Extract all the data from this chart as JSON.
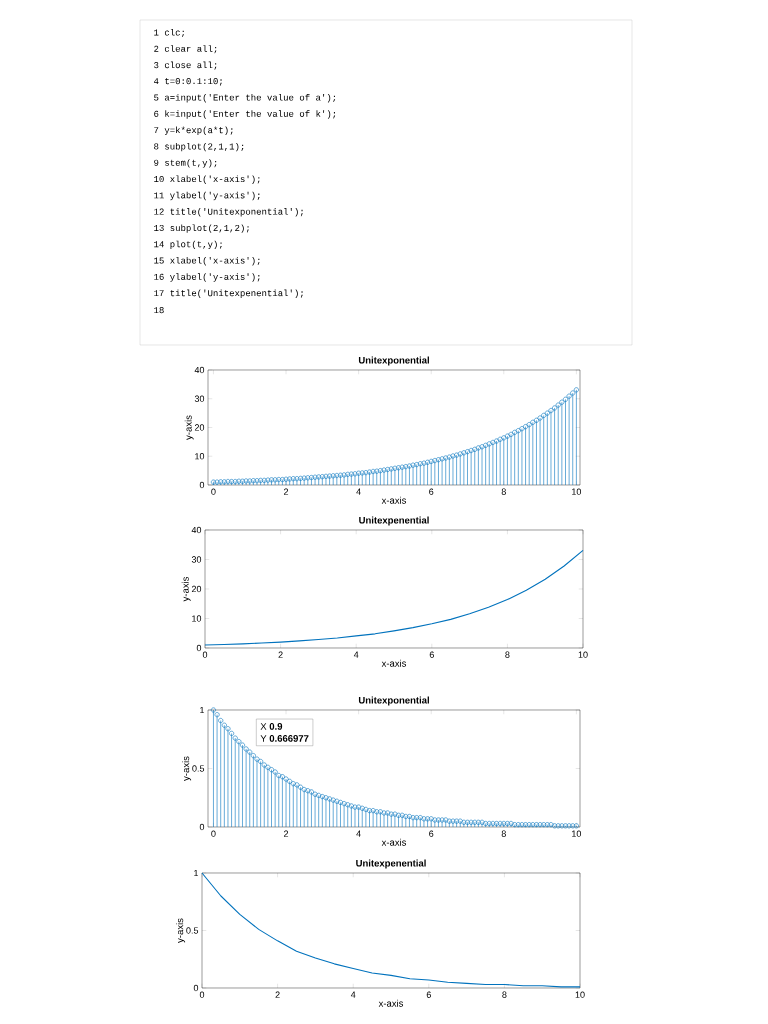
{
  "chart_data": [
    {
      "type": "other",
      "annotations": [
        "1 clc;",
        "2 clear all;",
        "3 close all;",
        "4 t=0:0.1:10;",
        "5 a=input('Enter the value of a');",
        "6 k=input('Enter the value of k');",
        "7 y=k*exp(a*t);",
        "8 subplot(2,1,1);",
        "9 stem(t,y);",
        "10 xlabel('x-axis');",
        "11 ylabel('y-axis');",
        "12 title('Unitexponential');",
        "13 subplot(2,1,2);",
        "14 plot(t,y);",
        "15 xlabel('x-axis');",
        "16 ylabel('y-axis');",
        "17 title('Unitexpenential');",
        "18"
      ]
    },
    {
      "type": "lollipop",
      "title": "Unitexponential",
      "xlabel": "x-axis",
      "ylabel": "y-axis",
      "color": "#0072bd",
      "marker": "circle",
      "xlim": [
        -0.15,
        10.1
      ],
      "ylim": [
        0,
        40
      ],
      "xticks": [
        0,
        2,
        4,
        6,
        8,
        10
      ],
      "yticks": [
        0,
        10,
        20,
        30,
        40
      ],
      "x": [
        0,
        0.1,
        0.2,
        0.3,
        0.4,
        0.5,
        0.6,
        0.7,
        0.8,
        0.9,
        1,
        1.1,
        1.2,
        1.3,
        1.4,
        1.5,
        1.6,
        1.7,
        1.8,
        1.9,
        2,
        2.1,
        2.2,
        2.3,
        2.4,
        2.5,
        2.6,
        2.7,
        2.8,
        2.9,
        3,
        3.1,
        3.2,
        3.3,
        3.4,
        3.5,
        3.6,
        3.7,
        3.8,
        3.9,
        4,
        4.1,
        4.2,
        4.3,
        4.4,
        4.5,
        4.6,
        4.7,
        4.8,
        4.9,
        5,
        5.1,
        5.2,
        5.3,
        5.4,
        5.5,
        5.6,
        5.7,
        5.8,
        5.9,
        6,
        6.1,
        6.2,
        6.3,
        6.4,
        6.5,
        6.6,
        6.7,
        6.8,
        6.9,
        7,
        7.1,
        7.2,
        7.3,
        7.4,
        7.5,
        7.6,
        7.7,
        7.8,
        7.9,
        8,
        8.1,
        8.2,
        8.3,
        8.4,
        8.5,
        8.6,
        8.7,
        8.8,
        8.9,
        9,
        9.1,
        9.2,
        9.3,
        9.4,
        9.5,
        9.6,
        9.7,
        9.8,
        9.9,
        10
      ],
      "values": [
        1.0,
        1.0,
        1.1,
        1.1,
        1.2,
        1.2,
        1.2,
        1.3,
        1.3,
        1.4,
        1.4,
        1.5,
        1.5,
        1.6,
        1.6,
        1.7,
        1.8,
        1.8,
        1.9,
        1.9,
        2.0,
        2.1,
        2.2,
        2.2,
        2.3,
        2.4,
        2.5,
        2.6,
        2.7,
        2.8,
        2.9,
        3.0,
        3.1,
        3.2,
        3.3,
        3.4,
        3.5,
        3.7,
        3.8,
        3.9,
        4.1,
        4.2,
        4.3,
        4.5,
        4.7,
        4.8,
        5.0,
        5.2,
        5.4,
        5.6,
        5.8,
        6.0,
        6.2,
        6.4,
        6.6,
        6.9,
        7.1,
        7.4,
        7.6,
        7.9,
        8.2,
        8.5,
        8.8,
        9.1,
        9.4,
        9.7,
        10.1,
        10.4,
        10.8,
        11.2,
        11.6,
        12.0,
        12.4,
        12.9,
        13.3,
        13.8,
        14.3,
        14.8,
        15.3,
        15.9,
        16.4,
        17.0,
        17.6,
        18.3,
        18.9,
        19.6,
        20.3,
        21.0,
        21.8,
        22.5,
        23.3,
        24.2,
        25.0,
        25.9,
        26.8,
        27.8,
        28.8,
        29.8,
        30.9,
        32.0,
        33.1
      ]
    },
    {
      "type": "line",
      "title": "Unitexpenential",
      "xlabel": "x-axis",
      "ylabel": "y-axis",
      "color": "#0072bd",
      "xlim": [
        0,
        10
      ],
      "ylim": [
        0,
        40
      ],
      "xticks": [
        0,
        2,
        4,
        6,
        8,
        10
      ],
      "yticks": [
        0,
        10,
        20,
        30,
        40
      ],
      "x": [
        0,
        0.5,
        1,
        1.5,
        2,
        2.5,
        3,
        3.5,
        4,
        4.5,
        5,
        5.5,
        6,
        6.5,
        7,
        7.5,
        8,
        8.5,
        9,
        9.5,
        10
      ],
      "values": [
        1.0,
        1.2,
        1.4,
        1.7,
        2.0,
        2.4,
        2.9,
        3.4,
        4.1,
        4.8,
        5.8,
        6.9,
        8.2,
        9.7,
        11.6,
        13.8,
        16.4,
        19.6,
        23.3,
        27.8,
        33.1
      ]
    },
    {
      "type": "lollipop",
      "title": "Unitexponential",
      "xlabel": "x-axis",
      "ylabel": "y-axis",
      "color": "#0072bd",
      "marker": "circle",
      "xlim": [
        -0.15,
        10.1
      ],
      "ylim": [
        0,
        1
      ],
      "xticks": [
        0,
        2,
        4,
        6,
        8,
        10
      ],
      "yticks": [
        0,
        0.5,
        1
      ],
      "annotations": [
        {
          "text": "X **0.9**",
          "x": 0.9,
          "y": 0.666977
        },
        {
          "text": "Y **0.666977**",
          "x": 0.9,
          "y": 0.666977
        }
      ],
      "x": [
        0,
        0.1,
        0.2,
        0.3,
        0.4,
        0.5,
        0.6,
        0.7,
        0.8,
        0.9,
        1,
        1.1,
        1.2,
        1.3,
        1.4,
        1.5,
        1.6,
        1.7,
        1.8,
        1.9,
        2,
        2.1,
        2.2,
        2.3,
        2.4,
        2.5,
        2.6,
        2.7,
        2.8,
        2.9,
        3,
        3.1,
        3.2,
        3.3,
        3.4,
        3.5,
        3.6,
        3.7,
        3.8,
        3.9,
        4,
        4.1,
        4.2,
        4.3,
        4.4,
        4.5,
        4.6,
        4.7,
        4.8,
        4.9,
        5,
        5.1,
        5.2,
        5.3,
        5.4,
        5.5,
        5.6,
        5.7,
        5.8,
        5.9,
        6,
        6.1,
        6.2,
        6.3,
        6.4,
        6.5,
        6.6,
        6.7,
        6.8,
        6.9,
        7,
        7.1,
        7.2,
        7.3,
        7.4,
        7.5,
        7.6,
        7.7,
        7.8,
        7.9,
        8,
        8.1,
        8.2,
        8.3,
        8.4,
        8.5,
        8.6,
        8.7,
        8.8,
        8.9,
        9,
        9.1,
        9.2,
        9.3,
        9.4,
        9.5,
        9.6,
        9.7,
        9.8,
        9.9,
        10
      ],
      "values": [
        1.0,
        0.96,
        0.91,
        0.87,
        0.84,
        0.8,
        0.76,
        0.73,
        0.7,
        0.666977,
        0.64,
        0.61,
        0.58,
        0.56,
        0.53,
        0.51,
        0.49,
        0.47,
        0.44,
        0.43,
        0.41,
        0.39,
        0.37,
        0.36,
        0.34,
        0.32,
        0.31,
        0.3,
        0.28,
        0.27,
        0.26,
        0.25,
        0.24,
        0.23,
        0.22,
        0.21,
        0.2,
        0.19,
        0.18,
        0.17,
        0.17,
        0.16,
        0.15,
        0.14,
        0.14,
        0.13,
        0.13,
        0.12,
        0.12,
        0.11,
        0.11,
        0.1,
        0.1,
        0.09,
        0.09,
        0.08,
        0.08,
        0.08,
        0.07,
        0.07,
        0.07,
        0.06,
        0.06,
        0.06,
        0.06,
        0.05,
        0.05,
        0.05,
        0.05,
        0.04,
        0.04,
        0.04,
        0.04,
        0.04,
        0.04,
        0.03,
        0.03,
        0.03,
        0.03,
        0.03,
        0.03,
        0.03,
        0.03,
        0.02,
        0.02,
        0.02,
        0.02,
        0.02,
        0.02,
        0.02,
        0.02,
        0.02,
        0.02,
        0.02,
        0.01,
        0.01,
        0.01,
        0.01,
        0.01,
        0.01,
        0.01
      ]
    },
    {
      "type": "line",
      "title": "Unitexpenential",
      "xlabel": "x-axis",
      "ylabel": "y-axis",
      "color": "#0072bd",
      "xlim": [
        0,
        10
      ],
      "ylim": [
        0,
        1
      ],
      "xticks": [
        0,
        2,
        4,
        6,
        8,
        10
      ],
      "yticks": [
        0,
        0.5,
        1
      ],
      "x": [
        0,
        0.5,
        1,
        1.5,
        2,
        2.5,
        3,
        3.5,
        4,
        4.5,
        5,
        5.5,
        6,
        6.5,
        7,
        7.5,
        8,
        8.5,
        9,
        9.5,
        10
      ],
      "values": [
        1.0,
        0.8,
        0.64,
        0.51,
        0.41,
        0.32,
        0.26,
        0.21,
        0.17,
        0.13,
        0.11,
        0.08,
        0.07,
        0.05,
        0.04,
        0.03,
        0.03,
        0.02,
        0.02,
        0.01,
        0.01
      ]
    }
  ]
}
